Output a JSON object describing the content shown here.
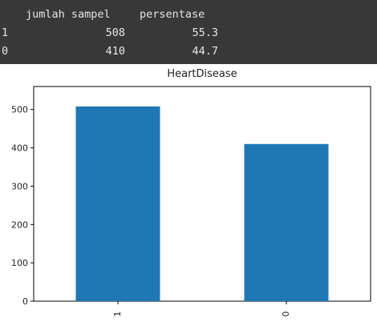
{
  "table": {
    "columns": [
      "jumlah sampel",
      "persentase"
    ],
    "rows": [
      {
        "index": "1",
        "jumlah_sampel": "508",
        "persentase": "55.3"
      },
      {
        "index": "0",
        "jumlah_sampel": "410",
        "persentase": "44.7"
      }
    ]
  },
  "chart_data": {
    "type": "bar",
    "title": "HeartDisease",
    "categories": [
      "1",
      "0"
    ],
    "values": [
      508,
      410
    ],
    "ylim": [
      0,
      560
    ],
    "yticks": [
      0,
      100,
      200,
      300,
      400,
      500
    ],
    "xlabel": "",
    "ylabel": "",
    "grid": false,
    "bar_color": "#1f77b4"
  }
}
